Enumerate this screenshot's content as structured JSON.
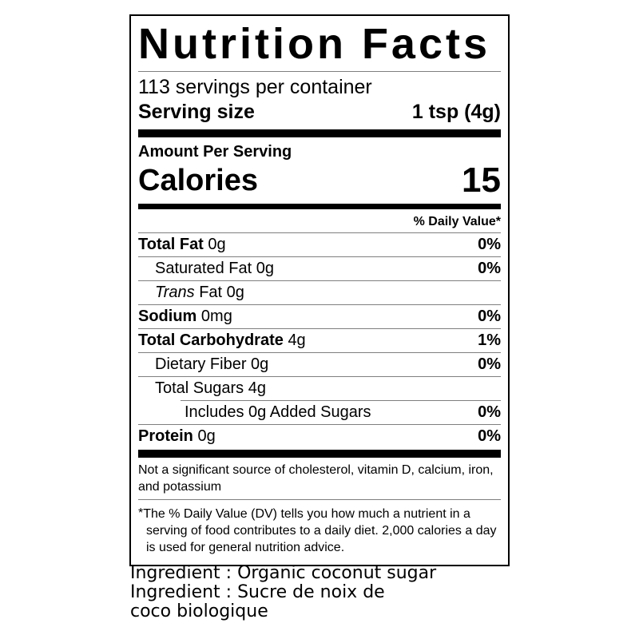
{
  "nutrition_label": {
    "title": "Nutrition Facts",
    "servings_per_container": "113 servings per container",
    "serving_size": {
      "label": "Serving size",
      "value": "1 tsp (4g)"
    },
    "amount_per_serving": "Amount Per Serving",
    "calories": {
      "label": "Calories",
      "value": "15"
    },
    "daily_value_header": "% Daily Value*",
    "rows": [
      {
        "name": "Total Fat",
        "amount": "0g",
        "dv": "0%"
      },
      {
        "name": "Saturated Fat",
        "amount": "0g",
        "dv": "0%"
      },
      {
        "name_italic": "Trans",
        "name": "Fat",
        "amount": "0g",
        "dv": ""
      },
      {
        "name": "Sodium",
        "amount": "0mg",
        "dv": "0%"
      },
      {
        "name": "Total Carbohydrate",
        "amount": "4g",
        "dv": "1%"
      },
      {
        "name": "Dietary Fiber",
        "amount": "0g",
        "dv": "0%"
      },
      {
        "name": "Total Sugars",
        "amount": "4g",
        "dv": ""
      },
      {
        "name": "Includes 0g Added Sugars",
        "amount": "",
        "dv": "0%"
      },
      {
        "name": "Protein",
        "amount": "0g",
        "dv": "0%"
      }
    ],
    "not_significant_note": "Not a significant source of cholesterol, vitamin D, calcium, iron, and potassium",
    "footnote_marker": "*",
    "footnote_text": "The % Daily Value (DV) tells you how much a nutrient in a serving of food contributes to a daily diet. 2,000 calories a day is used for general nutrition advice.",
    "colors": {
      "ink": "#000000",
      "hairline": "#7f7f7f",
      "background": "#ffffff"
    }
  },
  "ingredients": {
    "lines": [
      "Ingredient : Organic coconut sugar",
      "Ingredient : Sucre de noix de",
      "coco biologique"
    ]
  }
}
